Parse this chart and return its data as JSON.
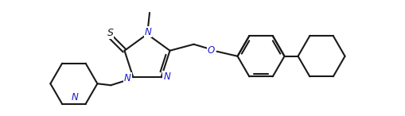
{
  "bg_color": "#ffffff",
  "line_color": "#1a1a1a",
  "atom_color": "#1a1acc",
  "line_width": 1.5,
  "font_size": 8.5,
  "figsize": [
    5.1,
    1.46
  ],
  "dpi": 100,
  "xlim": [
    0,
    5.1
  ],
  "ylim": [
    0,
    1.46
  ]
}
